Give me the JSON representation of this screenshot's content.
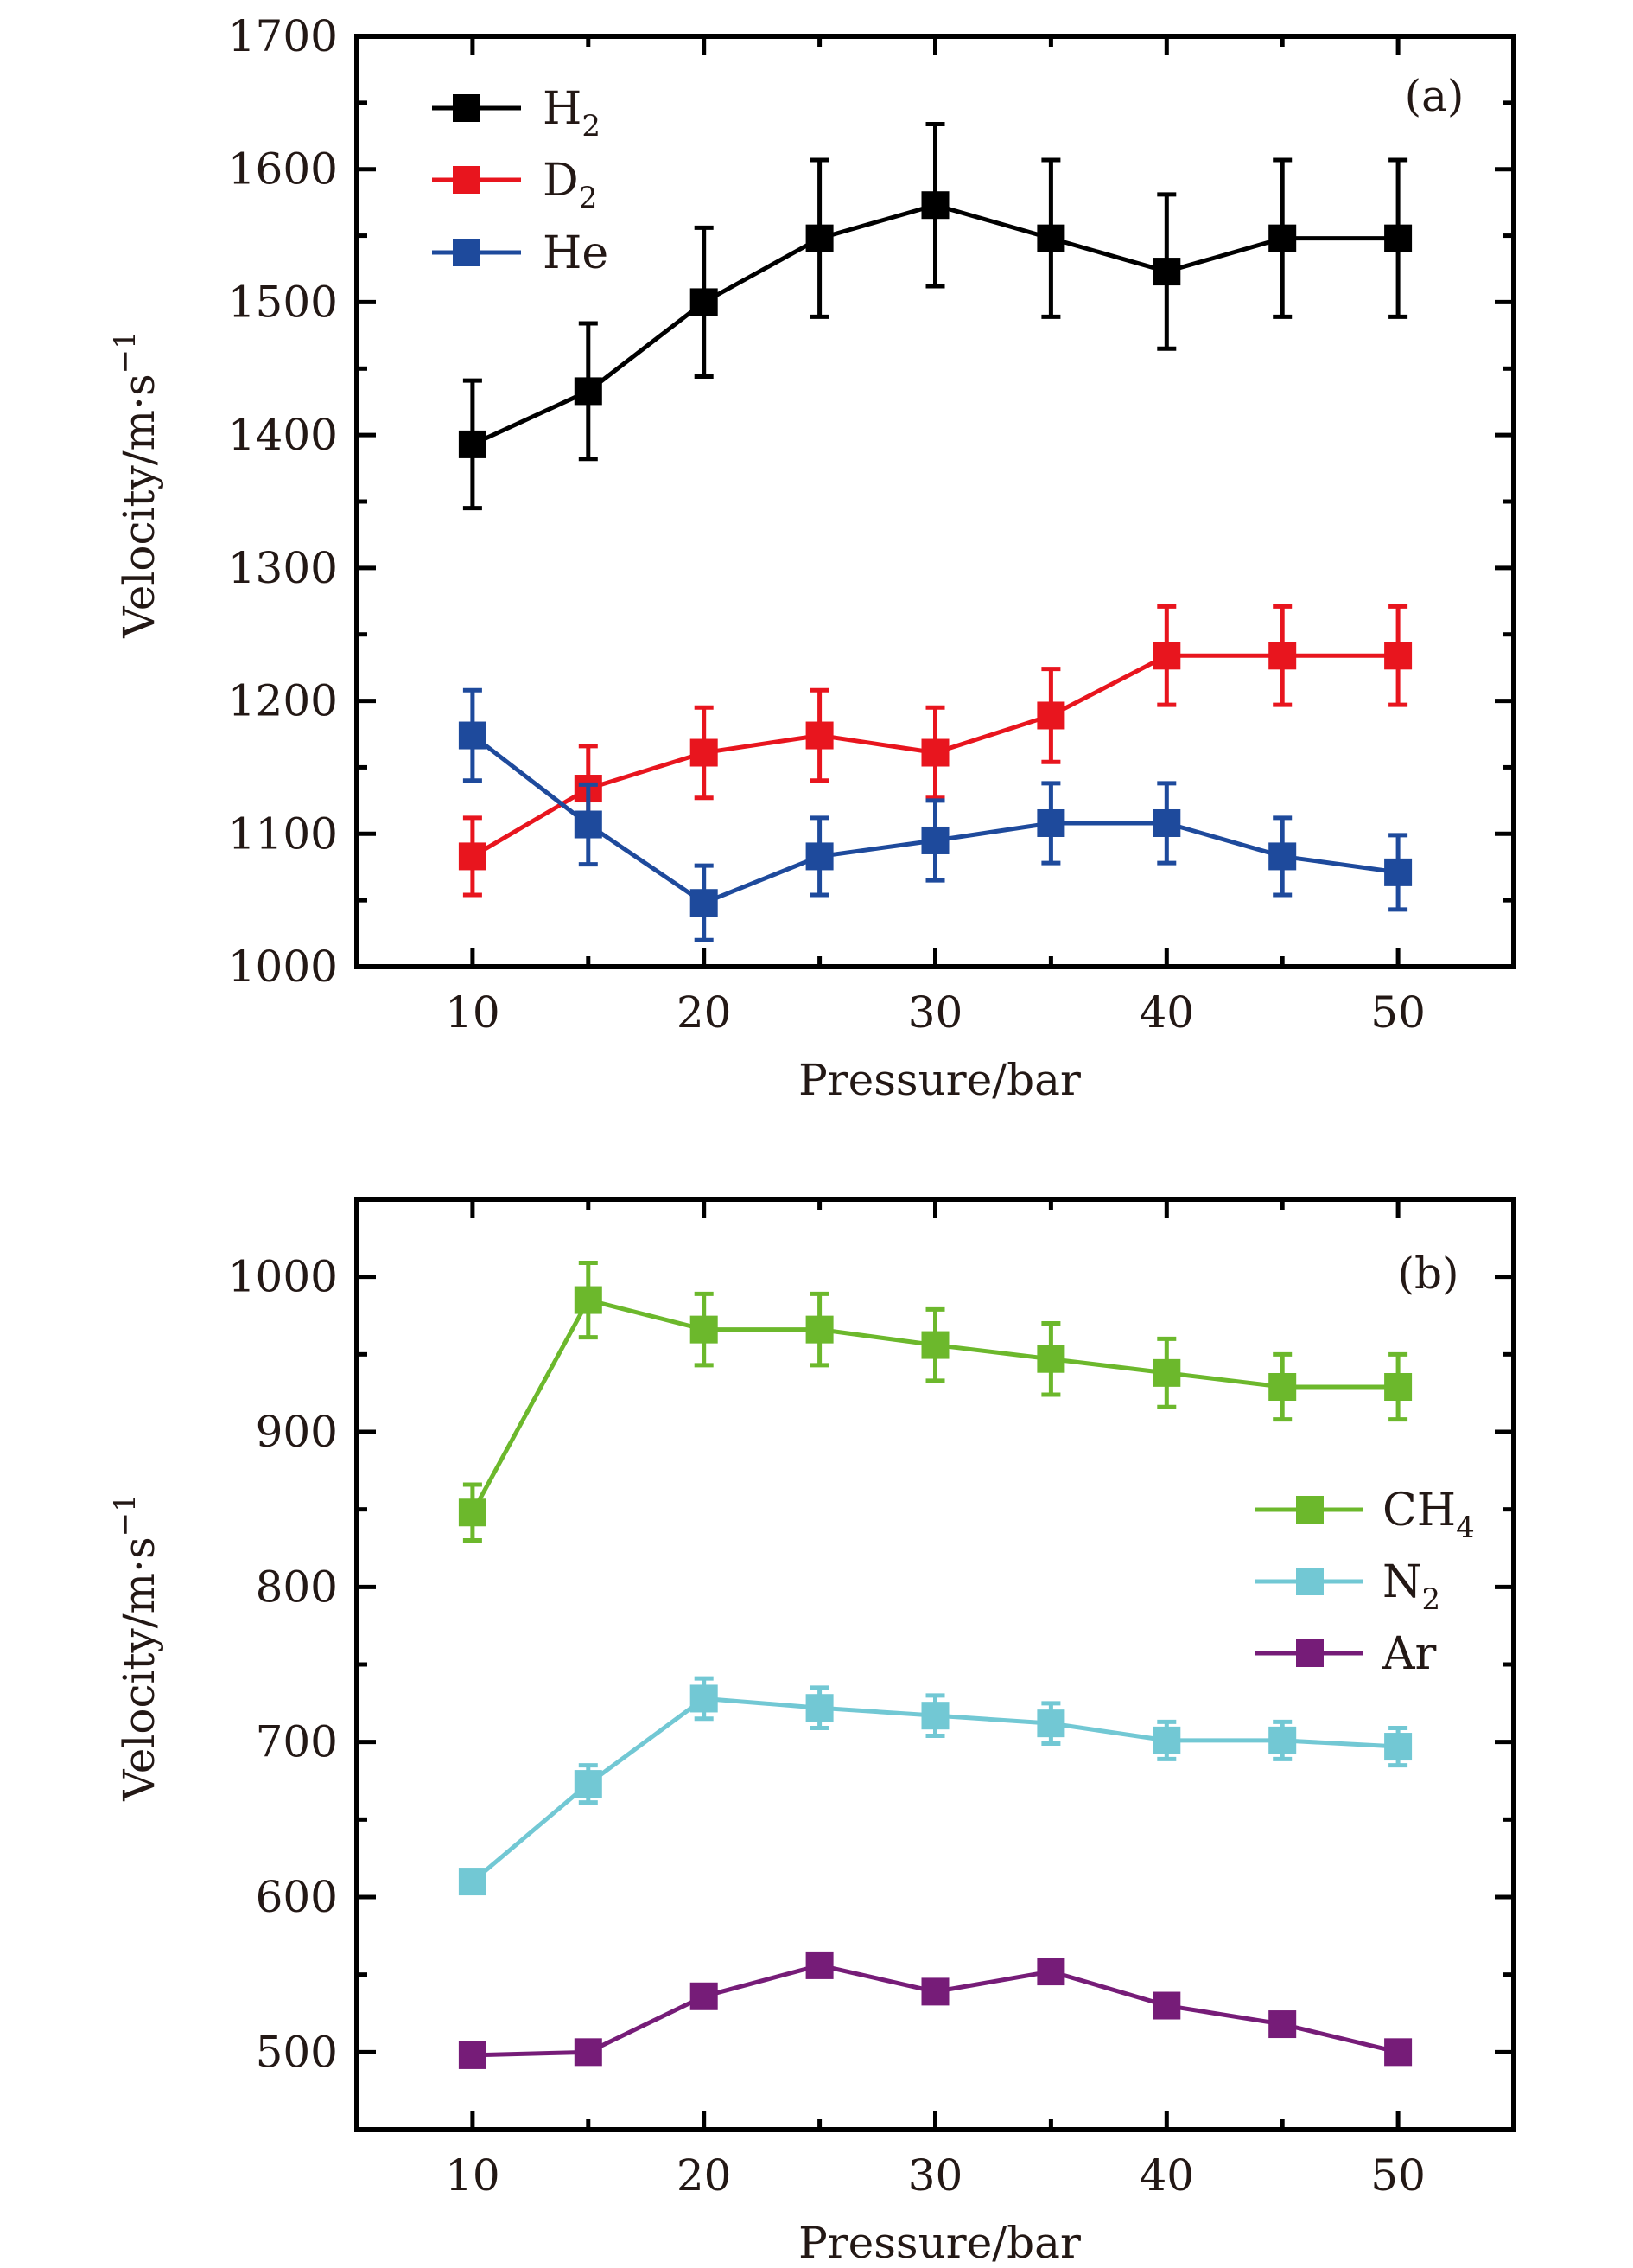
{
  "chart_data": [
    {
      "type": "line",
      "panel_label": "(a)",
      "xlabel": "Pressure/bar",
      "ylabel": "Velocity/m·s",
      "ylabel_superscript": "−1",
      "xlim": [
        5,
        55
      ],
      "ylim": [
        1000,
        1700
      ],
      "x_major_ticks": [
        10,
        20,
        30,
        40,
        50
      ],
      "x_minor_ticks": [
        15,
        25,
        35,
        45
      ],
      "y_major_ticks": [
        1000,
        1100,
        1200,
        1300,
        1400,
        1500,
        1600,
        1700
      ],
      "y_minor_ticks": [
        1050,
        1150,
        1250,
        1350,
        1450,
        1550,
        1650
      ],
      "x_tick_labels": [
        "10",
        "20",
        "30",
        "40",
        "50"
      ],
      "y_tick_labels": [
        "1000",
        "1100",
        "1200",
        "1300",
        "1400",
        "1500",
        "1600",
        "1700"
      ],
      "grid": false,
      "legend_position": "top-left",
      "x": [
        10,
        15,
        20,
        25,
        30,
        35,
        40,
        45,
        50
      ],
      "series": [
        {
          "name": "H2",
          "label_main": "H",
          "label_sub": "2",
          "color": "#000000",
          "marker": "square",
          "values": [
            1393,
            1433,
            1500,
            1548,
            1573,
            1548,
            1523,
            1548,
            1548
          ],
          "errors": [
            48,
            51,
            56,
            59,
            61,
            59,
            58,
            59,
            59
          ]
        },
        {
          "name": "D2",
          "label_main": "D",
          "label_sub": "2",
          "color": "#e8151e",
          "marker": "square",
          "values": [
            1083,
            1134,
            1161,
            1174,
            1161,
            1189,
            1234,
            1234,
            1234
          ],
          "errors": [
            29,
            32,
            34,
            34,
            34,
            35,
            37,
            37,
            37
          ]
        },
        {
          "name": "He",
          "label_main": "He",
          "label_sub": "",
          "color": "#1e4a9c",
          "marker": "square",
          "values": [
            1174,
            1107,
            1048,
            1083,
            1095,
            1108,
            1108,
            1083,
            1071
          ],
          "errors": [
            34,
            30,
            28,
            29,
            30,
            30,
            30,
            29,
            28
          ]
        }
      ]
    },
    {
      "type": "line",
      "panel_label": "(b)",
      "xlabel": "Pressure/bar",
      "ylabel": "Velocity/m·s",
      "ylabel_superscript": "−1",
      "xlim": [
        5,
        55
      ],
      "ylim": [
        450,
        1050
      ],
      "x_major_ticks": [
        10,
        20,
        30,
        40,
        50
      ],
      "x_minor_ticks": [
        15,
        25,
        35,
        45
      ],
      "y_major_ticks": [
        500,
        600,
        700,
        800,
        900,
        1000
      ],
      "y_minor_ticks": [
        550,
        650,
        750,
        850,
        950
      ],
      "x_tick_labels": [
        "10",
        "20",
        "30",
        "40",
        "50"
      ],
      "y_tick_labels": [
        "500",
        "600",
        "700",
        "800",
        "900",
        "1000"
      ],
      "grid": false,
      "legend_position": "right",
      "x": [
        10,
        15,
        20,
        25,
        30,
        35,
        40,
        45,
        50
      ],
      "series": [
        {
          "name": "CH4",
          "label_main": "CH",
          "label_sub": "4",
          "color": "#6cb82c",
          "marker": "square",
          "values": [
            848,
            985,
            966,
            966,
            956,
            947,
            938,
            929,
            929
          ],
          "errors": [
            18,
            24,
            23,
            23,
            23,
            23,
            22,
            21,
            21
          ]
        },
        {
          "name": "N2",
          "label_main": "N",
          "label_sub": "2",
          "color": "#72c8d4",
          "marker": "square",
          "values": [
            610,
            673,
            728,
            722,
            717,
            712,
            701,
            701,
            697
          ],
          "errors": [
            4,
            12,
            13,
            13,
            13,
            13,
            12,
            12,
            12
          ]
        },
        {
          "name": "Ar",
          "label_main": "Ar",
          "label_sub": "",
          "color": "#761c78",
          "marker": "square",
          "values": [
            498,
            500,
            536,
            556,
            539,
            552,
            530,
            518,
            500
          ],
          "errors": [
            0,
            0,
            0,
            0,
            0,
            0,
            0,
            0,
            0
          ]
        }
      ]
    }
  ]
}
